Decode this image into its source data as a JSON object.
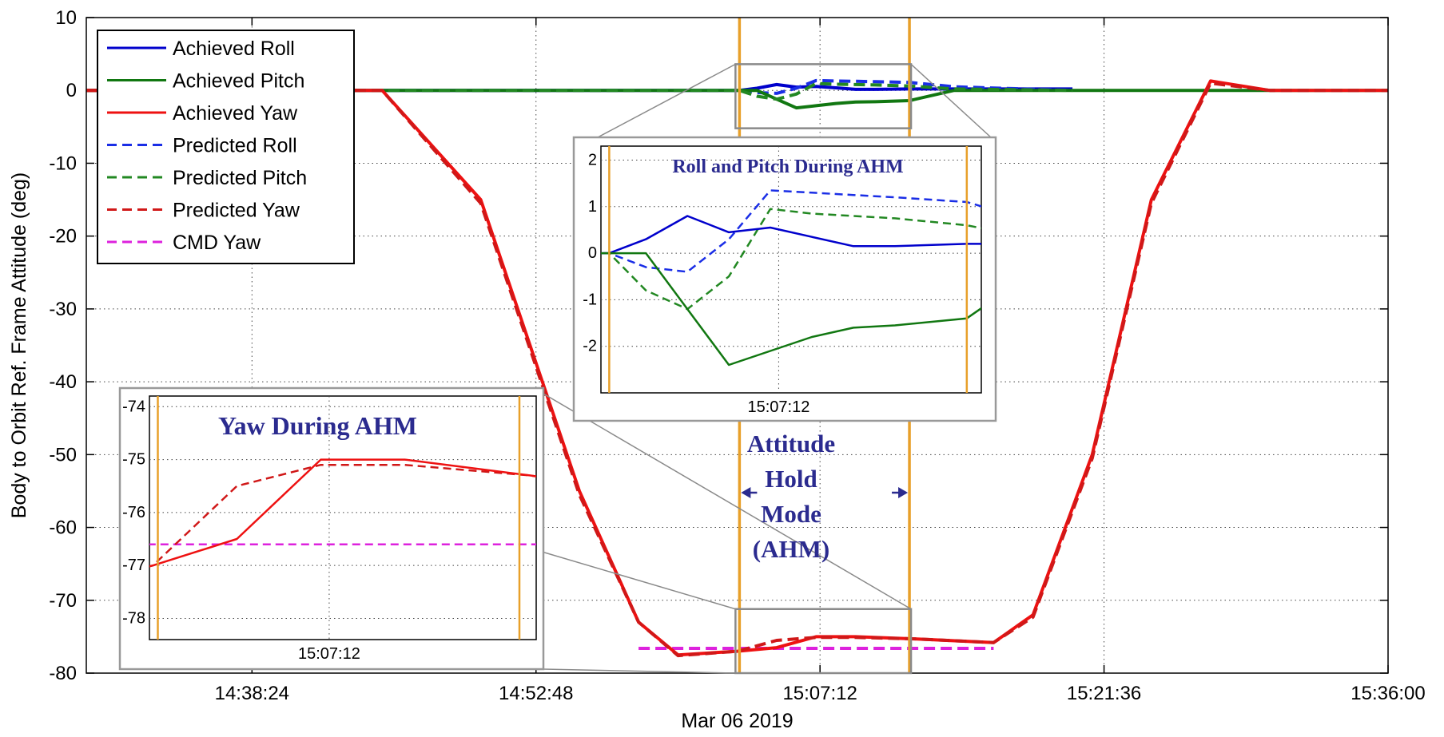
{
  "chart_data": {
    "type": "line",
    "xlabel": "Mar 06 2019",
    "ylabel": "Body to Orbit Ref. Frame Attitude (deg)",
    "x_tick_labels": [
      "14:38:24",
      "14:52:48",
      "15:07:12",
      "15:21:36",
      "15:36:00"
    ],
    "y_tick_labels": [
      "10",
      "0",
      "-10",
      "-20",
      "-30",
      "-40",
      "-50",
      "-60",
      "-70",
      "-80"
    ],
    "ylim": [
      -80,
      10
    ],
    "grid": true,
    "legend_position": "top-left",
    "ahm_window": [
      "15:03:07",
      "15:11:44"
    ],
    "series": [
      {
        "name": "Achieved Roll",
        "color": "#0000cc",
        "dash": "solid",
        "x": [
          "14:30:00",
          "15:03:07",
          "15:04:00",
          "15:05:00",
          "15:06:00",
          "15:07:00",
          "15:08:00",
          "15:09:00",
          "15:10:00",
          "15:11:44",
          "15:14:00",
          "15:20:00"
        ],
        "y": [
          0,
          0,
          0.3,
          0.8,
          0.45,
          0.55,
          0.35,
          0.15,
          0.15,
          0.2,
          0.2,
          0.2
        ]
      },
      {
        "name": "Achieved Pitch",
        "color": "#117711",
        "dash": "solid",
        "x": [
          "14:30:00",
          "15:03:07",
          "15:04:00",
          "15:05:00",
          "15:06:00",
          "15:07:00",
          "15:08:00",
          "15:09:00",
          "15:10:00",
          "15:11:44",
          "15:14:00",
          "15:36:00"
        ],
        "y": [
          0,
          0,
          0,
          -1.2,
          -2.4,
          -2.1,
          -1.8,
          -1.6,
          -1.55,
          -1.4,
          0,
          0
        ]
      },
      {
        "name": "Achieved Yaw",
        "color": "#ee1111",
        "dash": "solid",
        "x": [
          "14:30:00",
          "14:45:00",
          "14:50:00",
          "14:55:00",
          "14:58:00",
          "15:00:00",
          "15:03:00",
          "15:05:00",
          "15:07:00",
          "15:09:00",
          "15:12:00",
          "15:16:00",
          "15:18:00",
          "15:21:00",
          "15:24:00",
          "15:27:00",
          "15:30:00",
          "15:36:00"
        ],
        "y": [
          0,
          0,
          -15,
          -55,
          -73,
          -77.5,
          -77,
          -76.5,
          -75,
          -75,
          -75.3,
          -75.8,
          -72,
          -50,
          -15,
          1.3,
          0,
          0
        ]
      },
      {
        "name": "Predicted Roll",
        "color": "#1a2ee6",
        "dash": "dashed",
        "x": [
          "14:30:00",
          "15:03:07",
          "15:04:00",
          "15:05:00",
          "15:06:00",
          "15:07:00",
          "15:08:00",
          "15:09:00",
          "15:10:00",
          "15:11:44",
          "15:14:00",
          "15:20:00"
        ],
        "y": [
          0,
          0,
          -0.3,
          -0.4,
          0.3,
          1.35,
          1.3,
          1.25,
          1.2,
          1.1,
          0.5,
          0
        ]
      },
      {
        "name": "Predicted Pitch",
        "color": "#228822",
        "dash": "dashed",
        "x": [
          "14:30:00",
          "15:03:07",
          "15:04:00",
          "15:05:00",
          "15:06:00",
          "15:07:00",
          "15:08:00",
          "15:09:00",
          "15:10:00",
          "15:11:44",
          "15:14:00",
          "15:20:00"
        ],
        "y": [
          0,
          0,
          -0.8,
          -1.2,
          -0.5,
          0.95,
          0.85,
          0.8,
          0.75,
          0.6,
          0.2,
          0
        ]
      },
      {
        "name": "Predicted Yaw",
        "color": "#d01818",
        "dash": "dashed",
        "x": [
          "14:30:00",
          "14:45:00",
          "14:50:00",
          "14:55:00",
          "14:58:00",
          "15:00:00",
          "15:03:00",
          "15:05:00",
          "15:07:00",
          "15:09:00",
          "15:12:00",
          "15:16:00",
          "15:18:00",
          "15:21:00",
          "15:24:00",
          "15:27:00",
          "15:30:00",
          "15:36:00"
        ],
        "y": [
          0,
          0,
          -15.5,
          -55.5,
          -73,
          -77.6,
          -77,
          -75.5,
          -75.1,
          -75.1,
          -75.3,
          -75.8,
          -72.3,
          -50.5,
          -15.5,
          1.0,
          0,
          0
        ]
      },
      {
        "name": "CMD Yaw",
        "color": "#dd22dd",
        "dash": "dashed",
        "x": [
          "14:58:00",
          "15:16:00"
        ],
        "y": [
          -76.6,
          -76.6
        ]
      }
    ],
    "insets": [
      {
        "title": "Roll and Pitch During AHM",
        "x_tick_labels": [
          "15:07:12"
        ],
        "y_tick_labels": [
          "2",
          "1",
          "0",
          "-1",
          "-2"
        ],
        "ylim": [
          -3,
          2.3
        ],
        "series_shown": [
          "Achieved Roll",
          "Achieved Pitch",
          "Predicted Roll",
          "Predicted Pitch"
        ]
      },
      {
        "title": "Yaw During AHM",
        "x_tick_labels": [
          "15:07:12"
        ],
        "y_tick_labels": [
          "-74",
          "-75",
          "-76",
          "-77",
          "-78"
        ],
        "ylim": [
          -78.4,
          -73.8
        ],
        "series_shown": [
          "Achieved Yaw",
          "Predicted Yaw",
          "CMD Yaw"
        ]
      }
    ],
    "annotations": [
      {
        "text_lines": [
          "Attitude",
          "Hold",
          "Mode",
          "(AHM)"
        ]
      }
    ]
  },
  "colors": {
    "ahm_boundary": "#e8a02a",
    "annotation_text": "#2b2b8f",
    "zoom_box": "#8a8a8a"
  }
}
